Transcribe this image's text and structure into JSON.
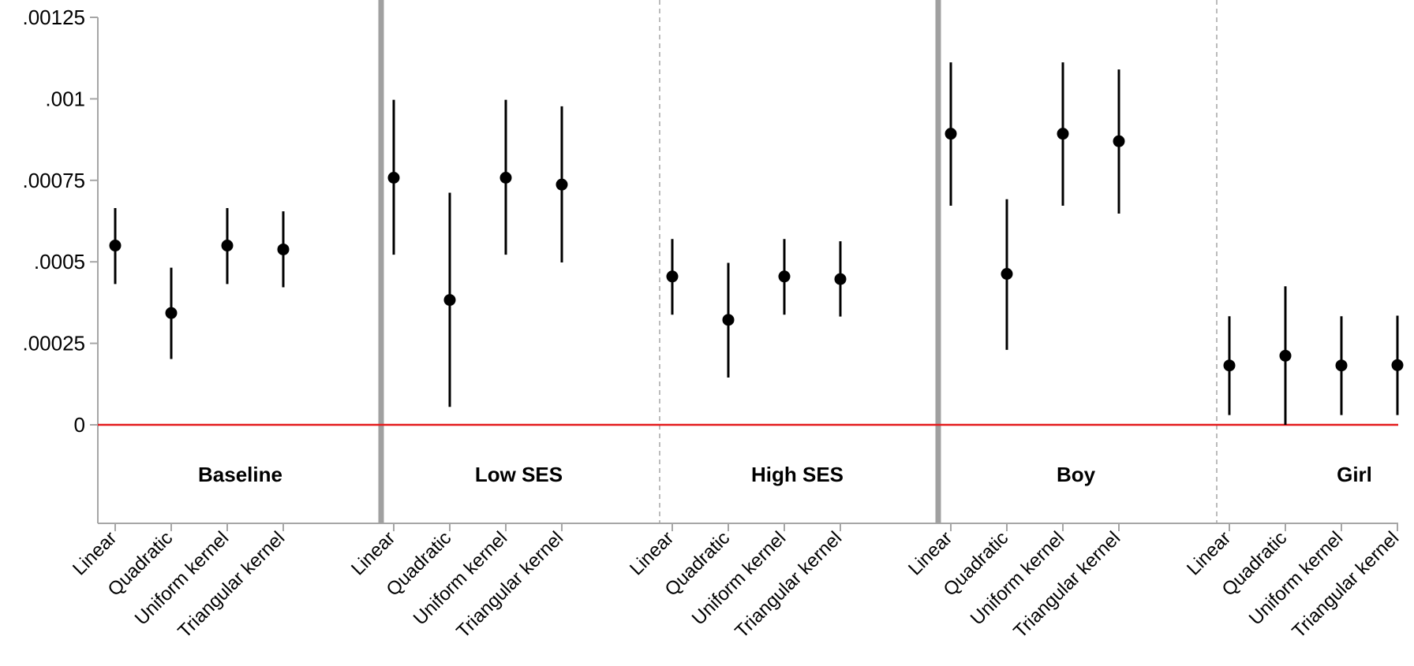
{
  "chart_data": {
    "type": "scatter",
    "title": "",
    "xlabel": "",
    "ylabel": "",
    "ylim": [
      0,
      0.00125
    ],
    "yticks": [
      {
        "value": 0,
        "label": "0"
      },
      {
        "value": 0.00025,
        "label": ".00025"
      },
      {
        "value": 0.0005,
        "label": ".0005"
      },
      {
        "value": 0.00075,
        "label": ".00075"
      },
      {
        "value": 0.001,
        "label": ".001"
      },
      {
        "value": 0.00125,
        "label": ".00125"
      }
    ],
    "reference_line": {
      "value": 0,
      "color": "#e41a1c"
    },
    "categories": [
      "Linear",
      "Quadratic",
      "Uniform kernel",
      "Triangular kernel"
    ],
    "groups": [
      {
        "name": "Baseline",
        "estimates": [
          0.00055,
          0.000343,
          0.00055,
          0.000538
        ],
        "ci_low": [
          0.000432,
          0.000202,
          0.000432,
          0.000422
        ],
        "ci_high": [
          0.000665,
          0.000482,
          0.000665,
          0.000655
        ]
      },
      {
        "name": "Low SES",
        "estimates": [
          0.000758,
          0.000383,
          0.000758,
          0.000737
        ],
        "ci_low": [
          0.000522,
          5.5e-05,
          0.000522,
          0.000498
        ],
        "ci_high": [
          0.000997,
          0.000712,
          0.000997,
          0.000977
        ]
      },
      {
        "name": "High SES",
        "estimates": [
          0.000455,
          0.000322,
          0.000455,
          0.000447
        ],
        "ci_low": [
          0.000338,
          0.000145,
          0.000338,
          0.000332
        ],
        "ci_high": [
          0.00057,
          0.000497,
          0.00057,
          0.000563
        ]
      },
      {
        "name": "Boy",
        "estimates": [
          0.000893,
          0.000463,
          0.000893,
          0.00087
        ],
        "ci_low": [
          0.000672,
          0.00023,
          0.000672,
          0.000648
        ],
        "ci_high": [
          0.001112,
          0.000692,
          0.001112,
          0.00109
        ]
      },
      {
        "name": "Girl",
        "estimates": [
          0.000182,
          0.000212,
          0.000182,
          0.000183
        ],
        "ci_low": [
          3e-05,
          0.0,
          3e-05,
          3e-05
        ],
        "ci_high": [
          0.000333,
          0.000425,
          0.000333,
          0.000335
        ]
      }
    ],
    "separators": [
      "thick",
      "dashed",
      "thick",
      "dashed"
    ],
    "colors": {
      "marker": "#000000",
      "axis": "#a6a6a6",
      "thick_separator": "#a0a0a0",
      "dashed_separator": "#a6a6a6",
      "zero_line": "#e41a1c"
    },
    "grid": false,
    "legend": "none"
  }
}
